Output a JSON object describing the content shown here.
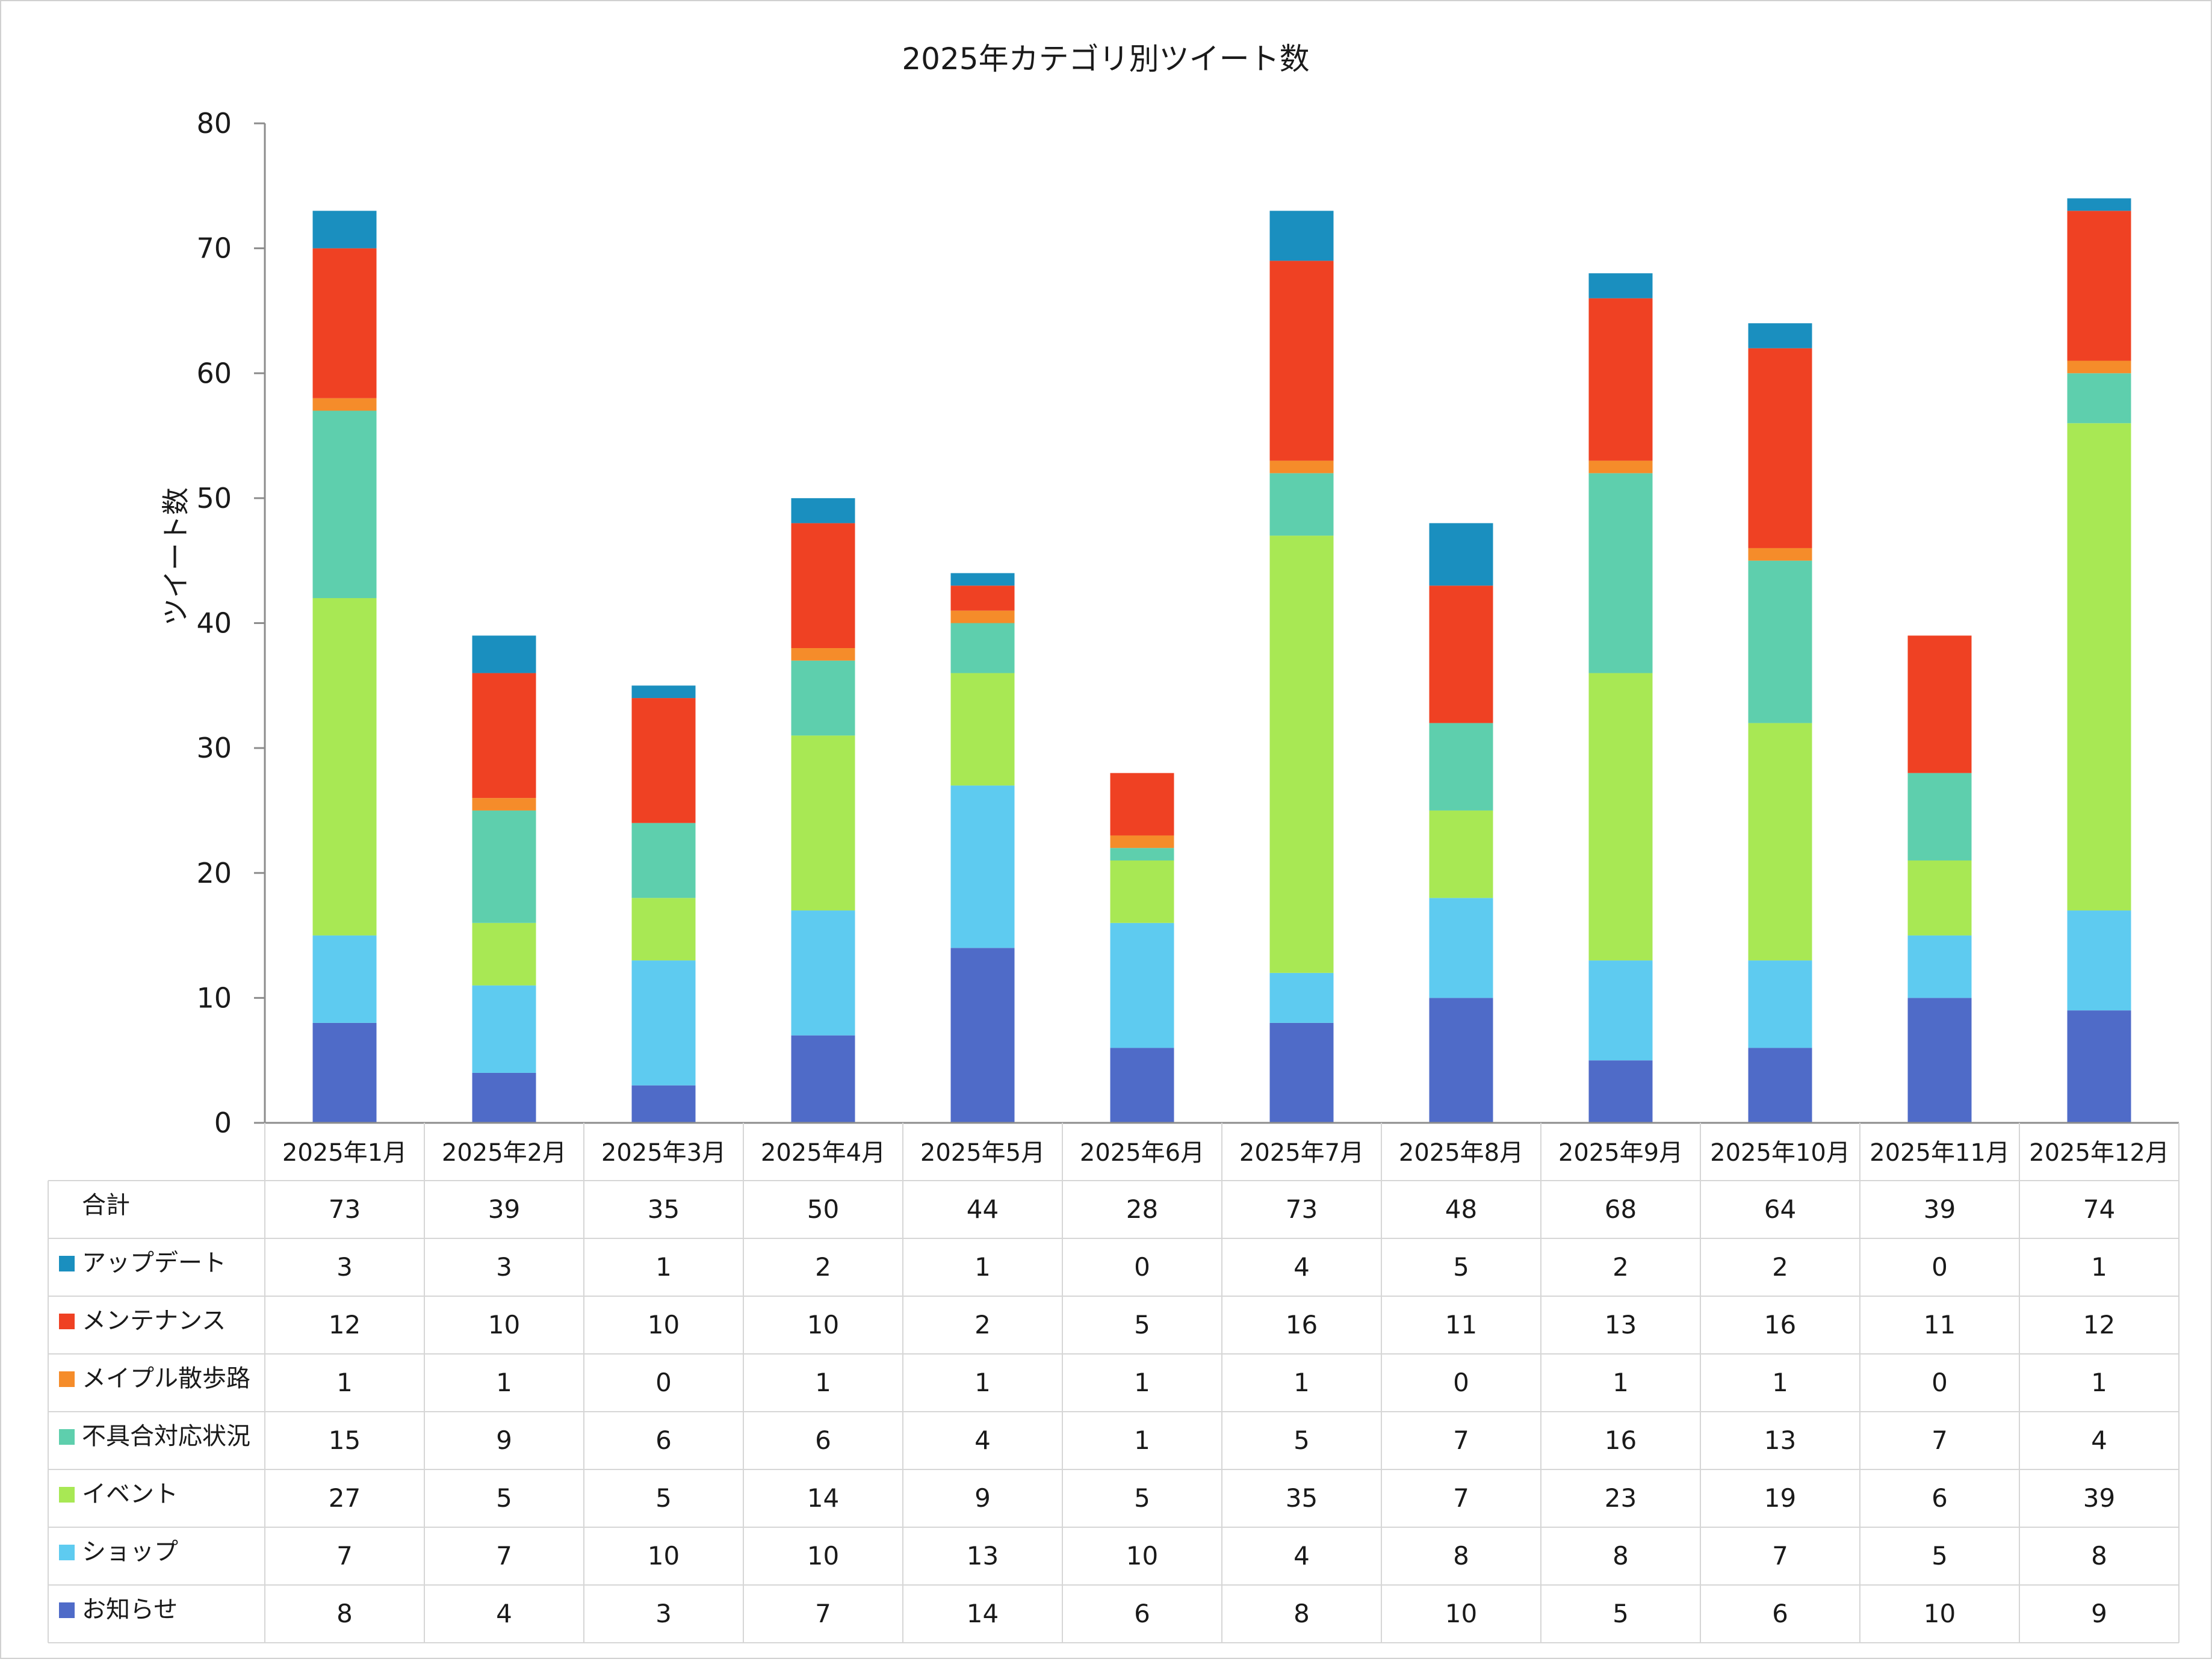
{
  "chart_data": {
    "type": "bar",
    "stacked": true,
    "title": "2025年カテゴリ別ツイート数",
    "ylabel": "ツイート数",
    "xlabel": "",
    "ylim": [
      0,
      80
    ],
    "yticks": [
      0,
      10,
      20,
      30,
      40,
      50,
      60,
      70,
      80
    ],
    "categories": [
      "2025年1月",
      "2025年2月",
      "2025年3月",
      "2025年4月",
      "2025年5月",
      "2025年6月",
      "2025年7月",
      "2025年8月",
      "2025年9月",
      "2025年10月",
      "2025年11月",
      "2025年12月"
    ],
    "series": [
      {
        "name": "お知らせ",
        "color": "#4f6bc8",
        "values": [
          8,
          4,
          3,
          7,
          14,
          6,
          8,
          10,
          5,
          6,
          10,
          9
        ]
      },
      {
        "name": "ショップ",
        "color": "#5ecbf0",
        "values": [
          7,
          7,
          10,
          10,
          13,
          10,
          4,
          8,
          8,
          7,
          5,
          8
        ]
      },
      {
        "name": "イベント",
        "color": "#a8e854",
        "values": [
          27,
          5,
          5,
          14,
          9,
          5,
          35,
          7,
          23,
          19,
          6,
          39
        ]
      },
      {
        "name": "不具合対応状況",
        "color": "#5ecfad",
        "values": [
          15,
          9,
          6,
          6,
          4,
          1,
          5,
          7,
          16,
          13,
          7,
          4
        ]
      },
      {
        "name": "メイプル散歩路",
        "color": "#f58c2a",
        "values": [
          1,
          1,
          0,
          1,
          1,
          1,
          1,
          0,
          1,
          1,
          0,
          1
        ]
      },
      {
        "name": "メンテナンス",
        "color": "#ef4123",
        "values": [
          12,
          10,
          10,
          10,
          2,
          5,
          16,
          11,
          13,
          16,
          11,
          12
        ]
      },
      {
        "name": "アップデート",
        "color": "#1a8fbf",
        "values": [
          3,
          3,
          1,
          2,
          1,
          0,
          4,
          5,
          2,
          2,
          0,
          1
        ]
      }
    ],
    "table": {
      "total_label": "合計",
      "totals": [
        73,
        39,
        35,
        50,
        44,
        28,
        73,
        48,
        68,
        64,
        39,
        74
      ],
      "row_order": [
        "アップデート",
        "メンテナンス",
        "メイプル散歩路",
        "不具合対応状況",
        "イベント",
        "ショップ",
        "お知らせ"
      ]
    }
  }
}
